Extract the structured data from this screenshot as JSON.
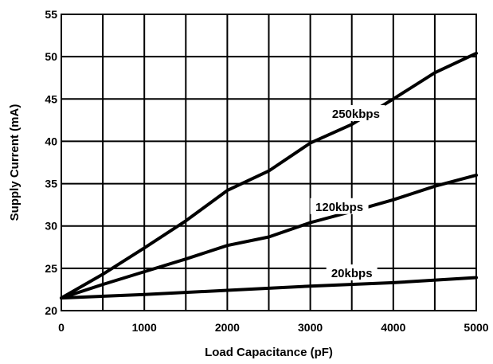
{
  "chart_data": {
    "type": "line",
    "title": "",
    "xlabel": "Load Capacitance (pF)",
    "ylabel": "Supply Current (mA)",
    "xlim": [
      0,
      5000
    ],
    "ylim": [
      20,
      55
    ],
    "xticks": [
      0,
      500,
      1000,
      1500,
      2000,
      2500,
      3000,
      3500,
      4000,
      4500,
      5000
    ],
    "xtick_labels": [
      "0",
      "",
      "1000",
      "",
      "2000",
      "",
      "3000",
      "",
      "4000",
      "",
      "5000"
    ],
    "yticks": [
      20,
      25,
      30,
      35,
      40,
      45,
      50,
      55
    ],
    "ytick_labels": [
      "20",
      "25",
      "30",
      "35",
      "40",
      "45",
      "50",
      "55"
    ],
    "grid": true,
    "legend": "inline labels on lines",
    "line_color": "#000000",
    "series": [
      {
        "name": "250kbps",
        "x": [
          0,
          500,
          1000,
          1500,
          2000,
          2500,
          3000,
          3500,
          4000,
          4500,
          5000
        ],
        "y": [
          21.5,
          24.3,
          27.4,
          30.6,
          34.2,
          36.5,
          39.8,
          42.0,
          45.0,
          48.1,
          50.4
        ]
      },
      {
        "name": "120kbps",
        "x": [
          0,
          500,
          1000,
          1500,
          2000,
          2500,
          3000,
          3500,
          4000,
          4500,
          5000
        ],
        "y": [
          21.5,
          23.1,
          24.6,
          26.1,
          27.7,
          28.7,
          30.4,
          31.7,
          33.1,
          34.7,
          36.0
        ]
      },
      {
        "name": "20kbps",
        "x": [
          0,
          1000,
          2000,
          3000,
          4000,
          5000
        ],
        "y": [
          21.5,
          21.9,
          22.4,
          22.9,
          23.3,
          23.9
        ]
      }
    ]
  }
}
